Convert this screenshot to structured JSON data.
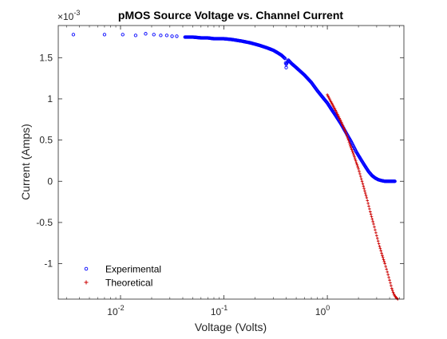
{
  "chart_data": {
    "type": "scatter",
    "title": "pMOS Source Voltage vs. Channel Current",
    "xlabel": "Voltage (Volts)",
    "ylabel": "Current (Amps)",
    "xscale": "log",
    "xlim": [
      0.0025,
      5.5
    ],
    "ylim": [
      -0.00143,
      0.00189
    ],
    "y_multiplier_label": "×10",
    "y_multiplier_exp": "-3",
    "x_ticks": [
      {
        "value": 0.01,
        "base": "10",
        "exp": "-2"
      },
      {
        "value": 0.1,
        "base": "10",
        "exp": "-1"
      },
      {
        "value": 1,
        "base": "10",
        "exp": "0"
      }
    ],
    "y_ticks": [
      {
        "value": 0.0015,
        "label": "1.5"
      },
      {
        "value": 0.001,
        "label": "1"
      },
      {
        "value": 0.0005,
        "label": "0.5"
      },
      {
        "value": 0,
        "label": "0"
      },
      {
        "value": -0.0005,
        "label": "-0.5"
      },
      {
        "value": -0.001,
        "label": "-1"
      }
    ],
    "grid": false,
    "legend_position": "bottom-left",
    "series": [
      {
        "name": "Experimental",
        "marker": "circle",
        "color": "#0000ff",
        "x": [
          0.0035,
          0.007,
          0.0105,
          0.014,
          0.0175,
          0.021,
          0.0245,
          0.028,
          0.0315,
          0.035,
          0.042,
          0.05,
          0.06,
          0.07,
          0.08,
          0.09,
          0.1,
          0.12,
          0.15,
          0.18,
          0.22,
          0.26,
          0.3,
          0.33,
          0.36,
          0.39,
          0.4,
          0.4,
          0.42,
          0.45,
          0.5,
          0.6,
          0.7,
          0.8,
          0.9,
          1.0,
          1.1,
          1.2,
          1.35,
          1.5,
          1.7,
          1.9,
          2.1,
          2.3,
          2.5,
          2.7,
          2.9,
          3.1,
          3.3,
          3.6,
          4.0,
          4.5
        ],
        "y": [
          0.00178,
          0.00178,
          0.00178,
          0.00177,
          0.00179,
          0.00178,
          0.00177,
          0.00177,
          0.00176,
          0.00176,
          0.00175,
          0.00175,
          0.00174,
          0.00174,
          0.00173,
          0.00173,
          0.00173,
          0.00172,
          0.0017,
          0.00168,
          0.00165,
          0.00162,
          0.00159,
          0.00156,
          0.00153,
          0.00149,
          0.00138,
          0.00142,
          0.00147,
          0.00143,
          0.00138,
          0.00129,
          0.0012,
          0.0011,
          0.00102,
          0.00095,
          0.00087,
          0.0008,
          0.0007,
          0.0006,
          0.00048,
          0.00036,
          0.00027,
          0.00019,
          0.00012,
          7e-05,
          4e-05,
          2e-05,
          1e-05,
          0.0,
          0.0,
          0.0
        ]
      },
      {
        "name": "Theoretical",
        "marker": "plus",
        "color": "#cc0000",
        "x": [
          1.0,
          1.1,
          1.2,
          1.35,
          1.5,
          1.65,
          1.8,
          2.0,
          2.2,
          2.4,
          2.6,
          2.8,
          3.0,
          3.2,
          3.4,
          3.6,
          3.8,
          4.0,
          4.2,
          4.4,
          4.6,
          4.8
        ],
        "y": [
          0.00105,
          0.00095,
          0.00086,
          0.00073,
          0.0006,
          0.00045,
          0.00032,
          0.00015,
          -3e-05,
          -0.0002,
          -0.00037,
          -0.00052,
          -0.00066,
          -0.00079,
          -0.0009,
          -0.001,
          -0.0011,
          -0.0012,
          -0.0013,
          -0.00137,
          -0.00141,
          -0.00143
        ]
      }
    ]
  }
}
